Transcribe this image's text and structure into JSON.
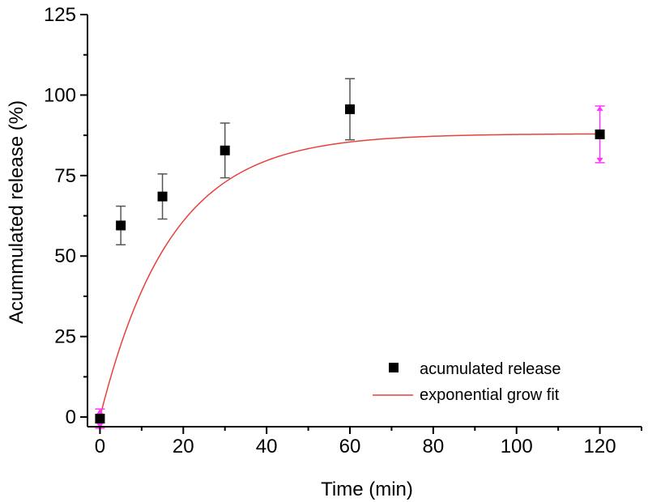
{
  "chart_data": {
    "type": "scatter",
    "title": "",
    "xlabel": "Time (min)",
    "ylabel": "Acummulated release (%)",
    "xlim": [
      -3,
      130
    ],
    "ylim": [
      -3,
      125
    ],
    "x_ticks": [
      0,
      20,
      40,
      60,
      80,
      100,
      120
    ],
    "y_ticks": [
      0,
      25,
      50,
      75,
      100,
      125
    ],
    "grid": false,
    "legend_position": "bottom-right",
    "series": [
      {
        "name": "acumulated release",
        "kind": "points",
        "marker": "square",
        "color": "#000000",
        "x": [
          0,
          5,
          15,
          30,
          60,
          120
        ],
        "y": [
          -0.5,
          59.5,
          68.5,
          82.8,
          95.6,
          87.8
        ],
        "error": [
          3,
          6,
          7,
          8.5,
          9.5,
          8.8
        ]
      },
      {
        "name": "exponential grow fit",
        "kind": "line",
        "color": "#e8413c",
        "model": "y = A * (1 - exp(-x / t))",
        "params": {
          "A": 88,
          "t": 17
        }
      }
    ],
    "highlighted_error_color": "#ff33ff",
    "highlighted_error_points": [
      0,
      5
    ]
  },
  "labels": {
    "x_tick_labels": [
      "0",
      "20",
      "40",
      "60",
      "80",
      "100",
      "120"
    ],
    "y_tick_labels": [
      "0",
      "25",
      "50",
      "75",
      "100",
      "125"
    ]
  }
}
